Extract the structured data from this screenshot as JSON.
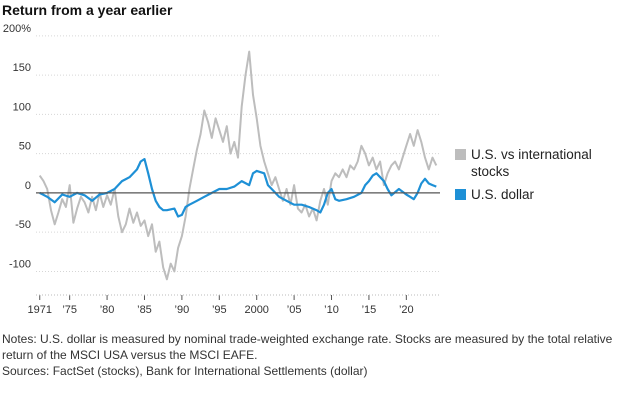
{
  "title": "Return from a year earlier",
  "legend": {
    "items": [
      {
        "label": "U.S. vs international stocks",
        "color": "#bdbdbd"
      },
      {
        "label": "U.S. dollar",
        "color": "#1e90d6"
      }
    ]
  },
  "notes": {
    "line1": "Notes: U.S. dollar is measured by nominal trade-weighted exchange rate. Stocks are measured by the total relative return of the MSCI USA versus the MSCI EAFE.",
    "line2": "Sources: FactSet (stocks), Bank for International Settlements (dollar)"
  },
  "chart_data": {
    "type": "line",
    "title": "Return from a year earlier",
    "xlabel": "",
    "ylabel": "",
    "xlim": [
      1970.5,
      2024.5
    ],
    "ylim": [
      -130,
      210
    ],
    "y_ticks": [
      -100,
      -50,
      0,
      50,
      100,
      150,
      200
    ],
    "y_tick_labels": [
      "-100",
      "-50",
      "0",
      "50",
      "100",
      "150",
      "200%"
    ],
    "x_ticks": [
      1971,
      1975,
      1980,
      1985,
      1990,
      1995,
      2000,
      2005,
      2010,
      2015,
      2020
    ],
    "x_tick_labels": [
      "1971",
      "’75",
      "’80",
      "’85",
      "’90",
      "’95",
      "2000",
      "’05",
      "’10",
      "’15",
      "’20"
    ],
    "grid": true,
    "legend_position": "right",
    "series": [
      {
        "name": "U.S. vs international stocks",
        "color": "#bdbdbd",
        "points": [
          [
            1971.0,
            22
          ],
          [
            1971.5,
            15
          ],
          [
            1972.0,
            5
          ],
          [
            1972.5,
            -22
          ],
          [
            1973.0,
            -40
          ],
          [
            1973.5,
            -25
          ],
          [
            1974.0,
            -8
          ],
          [
            1974.5,
            -18
          ],
          [
            1975.0,
            10
          ],
          [
            1975.5,
            -38
          ],
          [
            1976.0,
            -20
          ],
          [
            1976.5,
            -5
          ],
          [
            1977.0,
            -12
          ],
          [
            1977.5,
            -25
          ],
          [
            1978.0,
            -5
          ],
          [
            1978.5,
            -22
          ],
          [
            1979.0,
            0
          ],
          [
            1979.5,
            -18
          ],
          [
            1980.0,
            -3
          ],
          [
            1980.5,
            -15
          ],
          [
            1981.0,
            5
          ],
          [
            1981.5,
            -30
          ],
          [
            1982.0,
            -50
          ],
          [
            1982.5,
            -40
          ],
          [
            1983.0,
            -20
          ],
          [
            1983.5,
            -38
          ],
          [
            1984.0,
            -25
          ],
          [
            1984.5,
            -42
          ],
          [
            1985.0,
            -35
          ],
          [
            1985.5,
            -55
          ],
          [
            1986.0,
            -40
          ],
          [
            1986.5,
            -75
          ],
          [
            1987.0,
            -62
          ],
          [
            1987.5,
            -95
          ],
          [
            1988.0,
            -110
          ],
          [
            1988.5,
            -90
          ],
          [
            1989.0,
            -100
          ],
          [
            1989.5,
            -70
          ],
          [
            1990.0,
            -55
          ],
          [
            1990.5,
            -30
          ],
          [
            1991.0,
            5
          ],
          [
            1991.5,
            30
          ],
          [
            1992.0,
            55
          ],
          [
            1992.5,
            75
          ],
          [
            1993.0,
            105
          ],
          [
            1993.5,
            90
          ],
          [
            1994.0,
            70
          ],
          [
            1994.5,
            95
          ],
          [
            1995.0,
            80
          ],
          [
            1995.5,
            65
          ],
          [
            1996.0,
            85
          ],
          [
            1996.5,
            50
          ],
          [
            1997.0,
            65
          ],
          [
            1997.5,
            45
          ],
          [
            1998.0,
            110
          ],
          [
            1998.5,
            150
          ],
          [
            1999.0,
            180
          ],
          [
            1999.5,
            125
          ],
          [
            2000.0,
            95
          ],
          [
            2000.5,
            60
          ],
          [
            2001.0,
            40
          ],
          [
            2001.5,
            25
          ],
          [
            2002.0,
            10
          ],
          [
            2002.5,
            20
          ],
          [
            2003.0,
            5
          ],
          [
            2003.5,
            -10
          ],
          [
            2004.0,
            5
          ],
          [
            2004.5,
            -15
          ],
          [
            2005.0,
            10
          ],
          [
            2005.5,
            -20
          ],
          [
            2006.0,
            -25
          ],
          [
            2006.5,
            -15
          ],
          [
            2007.0,
            -30
          ],
          [
            2007.5,
            -20
          ],
          [
            2008.0,
            -35
          ],
          [
            2008.5,
            -10
          ],
          [
            2009.0,
            5
          ],
          [
            2009.5,
            -15
          ],
          [
            2010.0,
            15
          ],
          [
            2010.5,
            25
          ],
          [
            2011.0,
            20
          ],
          [
            2011.5,
            30
          ],
          [
            2012.0,
            20
          ],
          [
            2012.5,
            35
          ],
          [
            2013.0,
            30
          ],
          [
            2013.5,
            40
          ],
          [
            2014.0,
            60
          ],
          [
            2014.5,
            50
          ],
          [
            2015.0,
            35
          ],
          [
            2015.5,
            45
          ],
          [
            2016.0,
            30
          ],
          [
            2016.5,
            40
          ],
          [
            2017.0,
            10
          ],
          [
            2017.5,
            25
          ],
          [
            2018.0,
            35
          ],
          [
            2018.5,
            40
          ],
          [
            2019.0,
            30
          ],
          [
            2019.5,
            45
          ],
          [
            2020.0,
            60
          ],
          [
            2020.5,
            75
          ],
          [
            2021.0,
            60
          ],
          [
            2021.5,
            80
          ],
          [
            2022.0,
            65
          ],
          [
            2022.5,
            45
          ],
          [
            2023.0,
            30
          ],
          [
            2023.5,
            45
          ],
          [
            2024.0,
            35
          ]
        ]
      },
      {
        "name": "U.S. dollar",
        "color": "#1e90d6",
        "points": [
          [
            1971.0,
            0
          ],
          [
            1972.0,
            -5
          ],
          [
            1973.0,
            -12
          ],
          [
            1974.0,
            -2
          ],
          [
            1975.0,
            -5
          ],
          [
            1976.0,
            0
          ],
          [
            1977.0,
            -3
          ],
          [
            1978.0,
            -10
          ],
          [
            1979.0,
            -2
          ],
          [
            1980.0,
            0
          ],
          [
            1981.0,
            5
          ],
          [
            1982.0,
            15
          ],
          [
            1983.0,
            20
          ],
          [
            1984.0,
            30
          ],
          [
            1984.5,
            40
          ],
          [
            1985.0,
            43
          ],
          [
            1985.5,
            25
          ],
          [
            1986.0,
            5
          ],
          [
            1986.5,
            -10
          ],
          [
            1987.0,
            -18
          ],
          [
            1987.5,
            -22
          ],
          [
            1988.0,
            -22
          ],
          [
            1989.0,
            -20
          ],
          [
            1989.5,
            -30
          ],
          [
            1990.0,
            -28
          ],
          [
            1990.5,
            -18
          ],
          [
            1991.0,
            -15
          ],
          [
            1992.0,
            -10
          ],
          [
            1993.0,
            -5
          ],
          [
            1994.0,
            0
          ],
          [
            1995.0,
            5
          ],
          [
            1996.0,
            5
          ],
          [
            1997.0,
            8
          ],
          [
            1998.0,
            15
          ],
          [
            1999.0,
            10
          ],
          [
            1999.5,
            25
          ],
          [
            2000.0,
            28
          ],
          [
            2001.0,
            25
          ],
          [
            2001.5,
            10
          ],
          [
            2002.0,
            5
          ],
          [
            2003.0,
            -5
          ],
          [
            2004.0,
            -10
          ],
          [
            2005.0,
            -15
          ],
          [
            2006.0,
            -15
          ],
          [
            2007.0,
            -18
          ],
          [
            2008.0,
            -22
          ],
          [
            2008.5,
            -25
          ],
          [
            2009.0,
            -15
          ],
          [
            2009.5,
            0
          ],
          [
            2010.0,
            5
          ],
          [
            2010.5,
            -8
          ],
          [
            2011.0,
            -10
          ],
          [
            2012.0,
            -8
          ],
          [
            2013.0,
            -5
          ],
          [
            2014.0,
            0
          ],
          [
            2014.5,
            10
          ],
          [
            2015.0,
            15
          ],
          [
            2015.5,
            22
          ],
          [
            2016.0,
            25
          ],
          [
            2017.0,
            15
          ],
          [
            2017.5,
            5
          ],
          [
            2018.0,
            -3
          ],
          [
            2019.0,
            5
          ],
          [
            2020.0,
            -2
          ],
          [
            2020.5,
            -5
          ],
          [
            2021.0,
            -8
          ],
          [
            2021.5,
            0
          ],
          [
            2022.0,
            12
          ],
          [
            2022.5,
            18
          ],
          [
            2023.0,
            12
          ],
          [
            2023.5,
            10
          ],
          [
            2024.0,
            8
          ]
        ]
      }
    ]
  }
}
